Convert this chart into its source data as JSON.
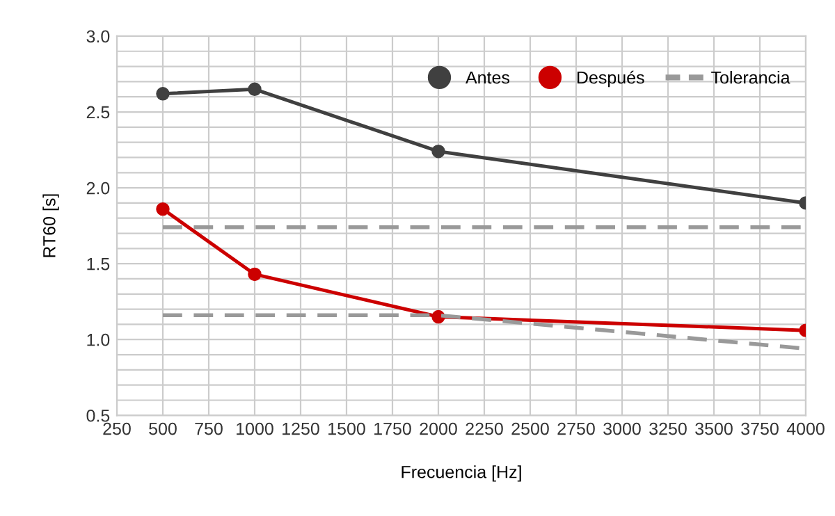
{
  "chart_data": {
    "type": "line",
    "xlabel": "Frecuencia [Hz]",
    "ylabel": "RT60 [s]",
    "xlim": [
      250,
      4000
    ],
    "xticks": [
      250,
      500,
      750,
      1000,
      1250,
      1500,
      1750,
      2000,
      2250,
      2500,
      2750,
      3000,
      3250,
      3500,
      3750,
      4000
    ],
    "ylim": [
      0.5,
      3.0
    ],
    "yticks": [
      0.5,
      {
        "value": 0.6,
        "label": null
      },
      {
        "value": 0.7,
        "label": null
      },
      {
        "value": 0.8,
        "label": null
      },
      {
        "value": 0.9,
        "label": null
      },
      {
        "value": 1,
        "label": "1.0"
      },
      {
        "value": 1.1,
        "label": null
      },
      {
        "value": 1.2,
        "label": null
      },
      {
        "value": 1.3,
        "label": null
      },
      {
        "value": 1.4,
        "label": null
      },
      1.5,
      {
        "value": 1.6,
        "label": null
      },
      {
        "value": 1.7,
        "label": null
      },
      {
        "value": 1.8,
        "label": null
      },
      {
        "value": 1.9,
        "label": null
      },
      {
        "value": 2,
        "label": "2.0"
      },
      {
        "value": 2.1,
        "label": null
      },
      {
        "value": 2.2,
        "label": null
      },
      {
        "value": 2.3,
        "label": null
      },
      {
        "value": 2.4,
        "label": null
      },
      2.5,
      {
        "value": 2.6,
        "label": null
      },
      {
        "value": 2.7,
        "label": null
      },
      {
        "value": 2.8,
        "label": null
      },
      {
        "value": 2.9,
        "label": null
      },
      {
        "value": 3,
        "label": "3.0"
      }
    ],
    "grid": true,
    "legend": "top right",
    "series": [
      {
        "name": "Antes",
        "color": "#404040",
        "x": [
          500,
          1000,
          2000,
          4000
        ],
        "values": [
          2.62,
          2.65,
          2.24,
          1.9
        ],
        "marker": "circle",
        "line_style": "solid"
      },
      {
        "name": "Después",
        "color": "#cc0000",
        "x": [
          500,
          1000,
          2000,
          4000
        ],
        "values": [
          1.86,
          1.43,
          1.15,
          1.06
        ],
        "marker": "circle",
        "line_style": "solid"
      },
      {
        "name": "Tolerancia",
        "color": "#999999",
        "x": [
          500,
          4000
        ],
        "values": [
          1.74,
          1.74
        ],
        "marker": "none",
        "line_style": "dashed"
      },
      {
        "color": "#999999",
        "x": [
          500,
          2000,
          4000
        ],
        "values": [
          1.16,
          1.16,
          0.94
        ],
        "marker": "none",
        "line_style": "dashed"
      }
    ]
  }
}
